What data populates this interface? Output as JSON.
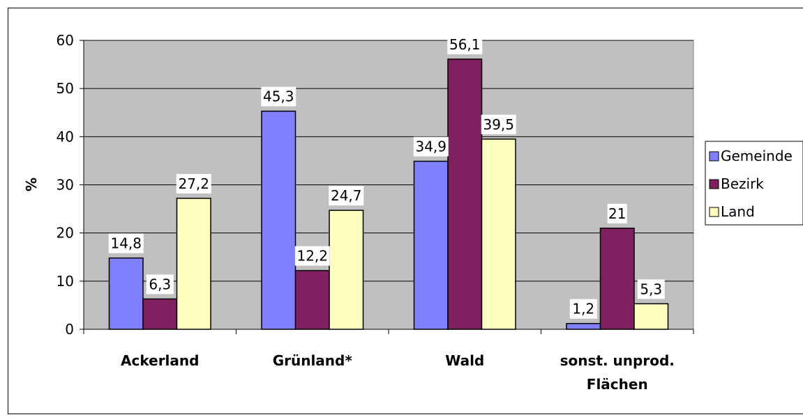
{
  "chart_data": {
    "type": "bar",
    "categories": [
      [
        "Ackerland"
      ],
      [
        "Grünland*"
      ],
      [
        "Wald"
      ],
      [
        "sonst. unprod.",
        "Flächen"
      ]
    ],
    "series": [
      {
        "name": "Gemeinde",
        "color": "#8080ff",
        "values": [
          14.8,
          45.3,
          34.9,
          1.2
        ],
        "labels": [
          "14,8",
          "45,3",
          "34,9",
          "1,2"
        ]
      },
      {
        "name": "Bezirk",
        "color": "#802060",
        "values": [
          6.3,
          12.2,
          56.1,
          21
        ],
        "labels": [
          "6,3",
          "12,2",
          "56,1",
          "21"
        ]
      },
      {
        "name": "Land",
        "color": "#ffffc0",
        "values": [
          27.2,
          24.7,
          39.5,
          5.3
        ],
        "labels": [
          "27,2",
          "24,7",
          "39,5",
          "5,3"
        ]
      }
    ],
    "ylabel": "%",
    "ylim": [
      0,
      60
    ],
    "yticks": [
      "0",
      "10",
      "20",
      "30",
      "40",
      "50",
      "60"
    ],
    "grid": true,
    "legend": "right",
    "plot_background": "#c0c0c0"
  }
}
